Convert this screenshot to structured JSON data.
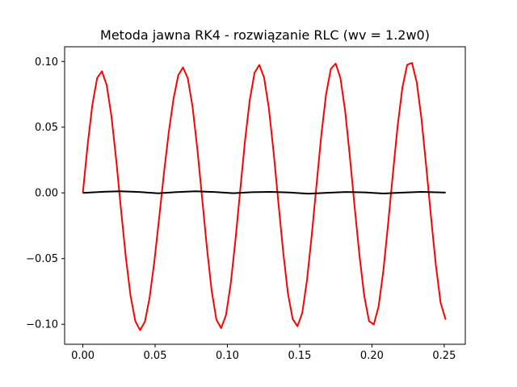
{
  "chart_data": {
    "type": "line",
    "title": "Metoda jawna RK4 - rozwiązanie RLC (wv = 1.2w0)",
    "xlabel": "",
    "ylabel": "",
    "xlim": [
      -0.0126,
      0.2646
    ],
    "ylim": [
      -0.1152,
      0.1112
    ],
    "x_ticks": [
      {
        "value": 0.0,
        "label": "0.00"
      },
      {
        "value": 0.05,
        "label": "0.05"
      },
      {
        "value": 0.1,
        "label": "0.10"
      },
      {
        "value": 0.15,
        "label": "0.15"
      },
      {
        "value": 0.2,
        "label": "0.20"
      },
      {
        "value": 0.25,
        "label": "0.25"
      }
    ],
    "y_ticks": [
      {
        "value": -0.1,
        "label": "−0.10"
      },
      {
        "value": -0.05,
        "label": "−0.05"
      },
      {
        "value": 0.0,
        "label": "0.00"
      },
      {
        "value": 0.05,
        "label": "0.05"
      },
      {
        "value": 0.1,
        "label": "0.10"
      }
    ],
    "grid": false,
    "legend": "none",
    "series": [
      {
        "color": "#ff0000",
        "x": [
          0.0,
          0.0033,
          0.0066,
          0.0099,
          0.0132,
          0.0165,
          0.0198,
          0.0231,
          0.0264,
          0.0297,
          0.033,
          0.0363,
          0.0396,
          0.0429,
          0.0462,
          0.0495,
          0.0528,
          0.0561,
          0.0594,
          0.0627,
          0.066,
          0.0693,
          0.0726,
          0.0759,
          0.0792,
          0.0825,
          0.0858,
          0.0891,
          0.0924,
          0.0957,
          0.099,
          0.1023,
          0.1056,
          0.1089,
          0.1122,
          0.1155,
          0.1188,
          0.1221,
          0.1254,
          0.1287,
          0.132,
          0.1353,
          0.1386,
          0.1419,
          0.1452,
          0.1485,
          0.1518,
          0.1551,
          0.1584,
          0.1617,
          0.165,
          0.1683,
          0.1716,
          0.1749,
          0.1782,
          0.1815,
          0.1848,
          0.1881,
          0.1914,
          0.1947,
          0.198,
          0.2013,
          0.2046,
          0.2079,
          0.2112,
          0.2145,
          0.2178,
          0.2211,
          0.2244,
          0.2277,
          0.231,
          0.2343,
          0.2376,
          0.2409,
          0.2442,
          0.2475,
          0.251
        ],
        "y": [
          0.0,
          0.0363,
          0.0671,
          0.0874,
          0.0925,
          0.082,
          0.0583,
          0.025,
          -0.0126,
          -0.0486,
          -0.0782,
          -0.0976,
          -0.1045,
          -0.0982,
          -0.0797,
          -0.0519,
          -0.019,
          0.0149,
          0.0458,
          0.0714,
          0.0895,
          0.0955,
          0.0872,
          0.0656,
          0.0336,
          -0.0036,
          -0.0413,
          -0.0742,
          -0.0965,
          -0.1029,
          -0.0932,
          -0.0693,
          -0.0356,
          0.0023,
          0.0397,
          0.0708,
          0.0914,
          0.0974,
          0.0877,
          0.0643,
          0.0307,
          -0.0076,
          -0.0449,
          -0.0766,
          -0.0961,
          -0.1015,
          -0.0914,
          -0.0662,
          -0.0318,
          0.0064,
          0.0441,
          0.0753,
          0.0944,
          0.0984,
          0.0874,
          0.0621,
          0.0269,
          -0.0114,
          -0.0478,
          -0.0785,
          -0.0975,
          -0.1002,
          -0.0865,
          -0.0593,
          -0.0235,
          0.0145,
          0.0511,
          0.0803,
          0.0975,
          0.0989,
          0.0842,
          0.0562,
          0.0198,
          -0.0186,
          -0.0547,
          -0.0835,
          -0.0965
        ]
      },
      {
        "color": "#000000",
        "x": [
          0.0,
          0.013,
          0.026,
          0.039,
          0.052,
          0.065,
          0.078,
          0.091,
          0.104,
          0.117,
          0.13,
          0.143,
          0.156,
          0.169,
          0.182,
          0.195,
          0.208,
          0.221,
          0.234,
          0.247,
          0.251
        ],
        "y": [
          0.0,
          0.0008,
          0.0012,
          0.0007,
          -0.0003,
          0.0006,
          0.0012,
          0.0007,
          -0.0002,
          0.0005,
          0.0008,
          0.0003,
          -0.0006,
          0.0001,
          0.0007,
          0.0004,
          -0.0005,
          0.0002,
          0.0008,
          0.0004,
          0.0002
        ]
      }
    ]
  }
}
